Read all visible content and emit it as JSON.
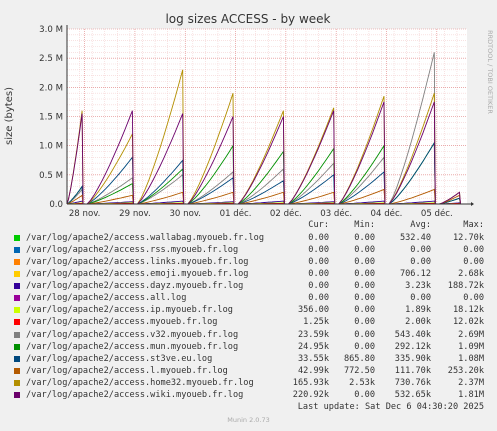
{
  "chart_data": {
    "type": "line",
    "title": "log sizes ACCESS - by week",
    "ylabel": "size (bytes)",
    "side_label": "RRDTOOL / TOBI OETIKER",
    "yticks": [
      {
        "v": 0,
        "label": "0.0"
      },
      {
        "v": 0.5,
        "label": "0.5 M"
      },
      {
        "v": 1.0,
        "label": "1.0 M"
      },
      {
        "v": 1.5,
        "label": "1.5 M"
      },
      {
        "v": 2.0,
        "label": "2.0 M"
      },
      {
        "v": 2.5,
        "label": "2.5 M"
      },
      {
        "v": 3.0,
        "label": "3.0 M"
      }
    ],
    "ylim": [
      0,
      3.0
    ],
    "xlim": [
      -0.35,
      7.6
    ],
    "xticks": [
      {
        "v": 0,
        "label": "28 nov."
      },
      {
        "v": 1,
        "label": "29 nov."
      },
      {
        "v": 2,
        "label": "30 nov."
      },
      {
        "v": 3,
        "label": "01 déc."
      },
      {
        "v": 4,
        "label": "02 déc."
      },
      {
        "v": 5,
        "label": "03 déc."
      },
      {
        "v": 6,
        "label": "04 déc."
      },
      {
        "v": 7,
        "label": "05 déc."
      }
    ],
    "columns": {
      "cur": "Cur:",
      "min": "Min:",
      "avg": "Avg:",
      "max": "Max:"
    },
    "series": [
      {
        "name": "/var/log/apache2/access.wallabag.myoueb.fr.log",
        "color": "#00cc00",
        "cur": "0.00",
        "min": "0.00",
        "avg": "532.40",
        "max": "12.70k",
        "peaks": [
          0.01,
          0.02,
          0.02,
          0.02,
          0.02,
          0.02,
          0.02,
          0.02,
          0.01
        ]
      },
      {
        "name": "/var/log/apache2/access.rss.myoueb.fr.log",
        "color": "#0066b3",
        "cur": "0.00",
        "min": "0.00",
        "avg": "0.00",
        "max": "0.00",
        "peaks": [
          0,
          0,
          0,
          0,
          0,
          0,
          0,
          0,
          0
        ]
      },
      {
        "name": "/var/log/apache2/access.links.myoueb.fr.log",
        "color": "#ff8000",
        "cur": "0.00",
        "min": "0.00",
        "avg": "0.00",
        "max": "0.00",
        "peaks": [
          0,
          0,
          0,
          0,
          0,
          0,
          0,
          0,
          0
        ]
      },
      {
        "name": "/var/log/apache2/access.emoji.myoueb.fr.log",
        "color": "#ffcc00",
        "cur": "0.00",
        "min": "0.00",
        "avg": "706.12",
        "max": "2.68k",
        "peaks": [
          0,
          0,
          0,
          0,
          0,
          0,
          0,
          0,
          0
        ]
      },
      {
        "name": "/var/log/apache2/access.dayz.myoueb.fr.log",
        "color": "#330099",
        "cur": "0.00",
        "min": "0.00",
        "avg": "3.23k",
        "max": "188.72k",
        "peaks": [
          0.05,
          0.04,
          0.05,
          0.04,
          0.05,
          0.04,
          0.05,
          0.05,
          0.02
        ]
      },
      {
        "name": "/var/log/apache2/access.all.log",
        "color": "#990099",
        "cur": "0.00",
        "min": "0.00",
        "avg": "0.00",
        "max": "0.00",
        "peaks": [
          0,
          0,
          0,
          0,
          0,
          0,
          0,
          0,
          0
        ]
      },
      {
        "name": "/var/log/apache2/access.ip.myoueb.fr.log",
        "color": "#ccff00",
        "cur": "356.00",
        "min": "0.00",
        "avg": "1.89k",
        "max": "18.12k",
        "peaks": [
          0.02,
          0.02,
          0.02,
          0.02,
          0.02,
          0.02,
          0.02,
          0.02,
          0.01
        ]
      },
      {
        "name": "/var/log/apache2/access.myoueb.fr.log",
        "color": "#ff0000",
        "cur": "1.25k",
        "min": "0.00",
        "avg": "2.00k",
        "max": "12.02k",
        "peaks": [
          0.01,
          0.01,
          0.01,
          0.01,
          0.01,
          0.01,
          0.01,
          0.01,
          0.01
        ]
      },
      {
        "name": "/var/log/apache2/access.v32.myoueb.fr.log",
        "color": "#808080",
        "cur": "23.59k",
        "min": "0.00",
        "avg": "543.40k",
        "max": "2.69M",
        "peaks": [
          0.25,
          0.45,
          0.5,
          0.55,
          0.6,
          0.7,
          0.8,
          2.6,
          0.1
        ]
      },
      {
        "name": "/var/log/apache2/access.mun.myoueb.fr.log",
        "color": "#008f00",
        "cur": "24.95k",
        "min": "0.00",
        "avg": "292.12k",
        "max": "1.09M",
        "peaks": [
          0.3,
          0.35,
          0.6,
          1.0,
          0.9,
          0.95,
          1.0,
          1.05,
          0.1
        ]
      },
      {
        "name": "/var/log/apache2/access.st3ve.eu.log",
        "color": "#00487d",
        "cur": "33.55k",
        "min": "865.80",
        "avg": "335.90k",
        "max": "1.08M",
        "peaks": [
          0.3,
          0.8,
          0.75,
          0.45,
          0.4,
          0.5,
          0.55,
          1.05,
          0.1
        ]
      },
      {
        "name": "/var/log/apache2/access.l.myoueb.fr.log",
        "color": "#b35a00",
        "cur": "42.99k",
        "min": "772.50",
        "avg": "111.70k",
        "max": "253.20k",
        "peaks": [
          0.15,
          0.15,
          0.2,
          0.2,
          0.2,
          0.2,
          0.25,
          0.25,
          0.15
        ]
      },
      {
        "name": "/var/log/apache2/access.home32.myoueb.fr.log",
        "color": "#b38f00",
        "cur": "165.93k",
        "min": "2.53k",
        "avg": "730.76k",
        "max": "2.37M",
        "peaks": [
          1.6,
          1.2,
          2.3,
          1.9,
          1.6,
          1.65,
          1.85,
          1.9,
          0.2
        ]
      },
      {
        "name": "/var/log/apache2/access.wiki.myoueb.fr.log",
        "color": "#6b006b",
        "cur": "220.92k",
        "min": "0.00",
        "avg": "532.65k",
        "max": "1.81M",
        "peaks": [
          1.55,
          1.6,
          1.55,
          1.5,
          1.5,
          1.6,
          1.75,
          1.75,
          0.2
        ]
      }
    ]
  },
  "last_update": "Last update:  Sat Dec  6 04:30:20 2025",
  "footer": "Munin 2.0.73"
}
